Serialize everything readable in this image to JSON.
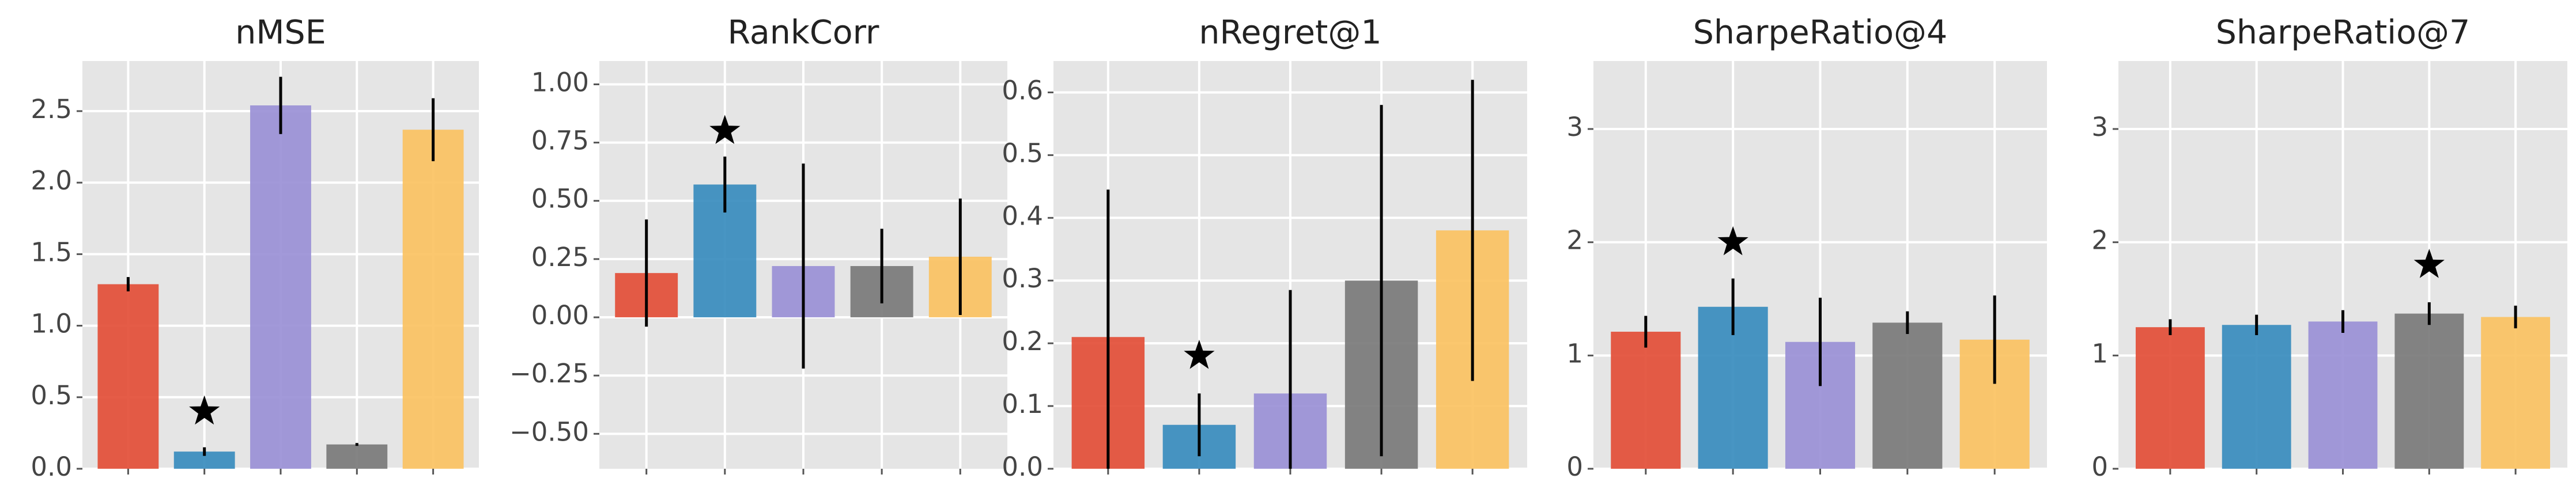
{
  "chart_data": [
    {
      "type": "bar",
      "title": "nMSE",
      "categories": [
        null,
        null,
        null,
        null,
        null
      ],
      "values": [
        1.29,
        0.12,
        2.54,
        0.17,
        2.37
      ],
      "errors": [
        0.05,
        0.03,
        0.2,
        0.01,
        0.22
      ],
      "colors": [
        "#E24A33",
        "#348ABD",
        "#988ED5",
        "#777777",
        "#FBC15E"
      ],
      "ylim": [
        0,
        2.85
      ],
      "yticks": [
        {
          "value": 0,
          "label": "0.0"
        },
        0.5,
        {
          "value": 1,
          "label": "1.0"
        },
        1.5,
        {
          "value": 2,
          "label": "2.0"
        },
        2.5
      ],
      "star": {
        "index": 1,
        "value": 0.4
      },
      "grid": true
    },
    {
      "type": "bar",
      "title": "RankCorr",
      "categories": [
        null,
        null,
        null,
        null,
        null
      ],
      "values": [
        0.19,
        0.57,
        0.22,
        0.22,
        0.26
      ],
      "errors": [
        0.23,
        0.12,
        0.44,
        0.16,
        0.25
      ],
      "colors": [
        "#E24A33",
        "#348ABD",
        "#988ED5",
        "#777777",
        "#FBC15E"
      ],
      "ylim": [
        -0.65,
        1.1
      ],
      "yticks": [
        {
          "value": -0.5,
          "label": "−0.50"
        },
        {
          "value": -0.25,
          "label": "−0.25"
        },
        {
          "value": 0,
          "label": "0.00"
        },
        {
          "value": 0.25,
          "label": "0.25"
        },
        {
          "value": 0.5,
          "label": "0.50"
        },
        {
          "value": 0.75,
          "label": "0.75"
        },
        {
          "value": 1,
          "label": "1.00"
        }
      ],
      "star": {
        "index": 1,
        "value": 0.8
      },
      "grid": true
    },
    {
      "type": "bar",
      "title": "nRegret@1",
      "categories": [
        null,
        null,
        null,
        null,
        null
      ],
      "values": [
        0.21,
        0.07,
        0.12,
        0.3,
        0.38
      ],
      "errors": [
        0.235,
        0.05,
        0.165,
        0.28,
        0.24
      ],
      "colors": [
        "#E24A33",
        "#348ABD",
        "#988ED5",
        "#777777",
        "#FBC15E"
      ],
      "ylim": [
        0,
        0.65
      ],
      "yticks": [
        {
          "value": 0,
          "label": "0.0"
        },
        0.1,
        0.2,
        0.3,
        0.4,
        0.5,
        0.6
      ],
      "star": {
        "index": 1,
        "value": 0.18
      },
      "grid": true
    },
    {
      "type": "bar",
      "title": "SharpeRatio@4",
      "categories": [
        null,
        null,
        null,
        null,
        null
      ],
      "values": [
        1.21,
        1.43,
        1.12,
        1.29,
        1.14
      ],
      "errors": [
        0.14,
        0.25,
        0.39,
        0.1,
        0.39
      ],
      "colors": [
        "#E24A33",
        "#348ABD",
        "#988ED5",
        "#777777",
        "#FBC15E"
      ],
      "ylim": [
        0,
        3.6
      ],
      "yticks": [
        0,
        1,
        2,
        3
      ],
      "star": {
        "index": 1,
        "value": 2.0
      },
      "grid": true
    },
    {
      "type": "bar",
      "title": "SharpeRatio@7",
      "categories": [
        null,
        null,
        null,
        null,
        null
      ],
      "values": [
        1.25,
        1.27,
        1.3,
        1.37,
        1.34
      ],
      "errors": [
        0.07,
        0.09,
        0.1,
        0.1,
        0.1
      ],
      "colors": [
        "#E24A33",
        "#348ABD",
        "#988ED5",
        "#777777",
        "#FBC15E"
      ],
      "ylim": [
        0,
        3.6
      ],
      "yticks": [
        0,
        1,
        2,
        3
      ],
      "star": {
        "index": 3,
        "value": 1.8
      },
      "grid": true
    }
  ]
}
